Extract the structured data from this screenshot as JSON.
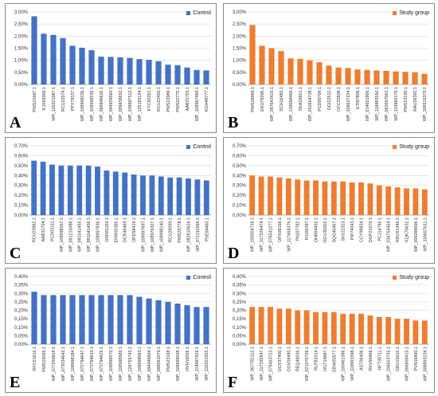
{
  "colors": {
    "control": "#4472C4",
    "study": "#ED7D31"
  },
  "chart_data": [
    {
      "panel": "A",
      "type": "bar",
      "legend": "Control",
      "legend_position": "top-right",
      "color": "#4472C4",
      "ylim": [
        0,
        3.0
      ],
      "yticks": [
        0,
        0.5,
        1.0,
        1.5,
        2.0,
        2.5,
        3.0
      ],
      "ytick_labels": [
        "0,00%",
        "0,50%",
        "1,00%",
        "1,50%",
        "2,00%",
        "2,50%",
        "3,00%"
      ],
      "grid": true,
      "categories": [
        "PWS22997.1",
        "KJX92006.1",
        "WP_110201987.1",
        "RCU22074.1",
        "PPY78337.1",
        "WP_108998236.1",
        "WP_108998235.1",
        "WP_068846626.1",
        "WP_094934560.1",
        "WP_089438650.1",
        "WP_108997512.1",
        "WP_125183134.1",
        "KTC95351.1",
        "RCU22456.1",
        "PWS22986.1",
        "PWS22770.1",
        "AAB31703.1",
        "WP_108997468.1",
        "KGH48777.1"
      ],
      "values": [
        2.82,
        2.1,
        2.05,
        1.92,
        1.6,
        1.52,
        1.42,
        1.15,
        1.14,
        1.12,
        1.1,
        1.05,
        1.02,
        0.96,
        0.82,
        0.8,
        0.7,
        0.6,
        0.58
      ]
    },
    {
      "panel": "B",
      "type": "bar",
      "legend": "Study group",
      "legend_position": "top-right",
      "color": "#ED7D31",
      "ylim": [
        0,
        3.0
      ],
      "yticks": [
        0,
        0.5,
        1.0,
        1.5,
        2.0,
        2.5,
        3.0
      ],
      "ytick_labels": [
        "0,00%",
        "0,50%",
        "1,00%",
        "1,50%",
        "2,00%",
        "2,50%",
        "3,00%"
      ],
      "grid": true,
      "categories": [
        "PWS28988.1",
        "EKO79396.1",
        "WP_087643415.1",
        "SCH16485.1",
        "WP_139098468.1",
        "SKA29921.1",
        "WP_052664738.1",
        "PCD00708.1",
        "OGI22512.1",
        "OFC32608.1",
        "WP_106627234.1",
        "ETI87806.1",
        "WP_014651806.1",
        "WP_118883550.1",
        "WP_062697062.1",
        "WP_114960176.1",
        "PWS23230.1",
        "RAU26392.1",
        "WP_106515370.1"
      ],
      "values": [
        2.46,
        1.6,
        1.5,
        1.38,
        1.08,
        1.06,
        1.0,
        0.92,
        0.78,
        0.7,
        0.68,
        0.62,
        0.6,
        0.58,
        0.56,
        0.54,
        0.52,
        0.5,
        0.44
      ]
    },
    {
      "panel": "C",
      "type": "bar",
      "legend": "Control",
      "legend_position": "top-right",
      "color": "#4472C4",
      "ylim": [
        0,
        0.7
      ],
      "yticks": [
        0,
        0.1,
        0.2,
        0.3,
        0.4,
        0.5,
        0.6,
        0.7
      ],
      "ytick_labels": [
        "0,00%",
        "0,10%",
        "0,20%",
        "0,30%",
        "0,40%",
        "0,50%",
        "0,60%",
        "0,70%"
      ],
      "grid": true,
      "categories": [
        "RCU23962.1",
        "AAB31704.1",
        "PCD03111.1",
        "WP_108998557.1",
        "WP_081215088.1",
        "WP_081041455.1",
        "WP_081041456.1",
        "WP_108997836.1",
        "OSR81169.1",
        "ERM00395.1",
        "OCR48469.1",
        "OFD58419.1",
        "WP_108997697.1",
        "WP_108976327.1",
        "WP_108998140.1",
        "RCU28299.1",
        "PWS25778.1",
        "WP_082810626.1",
        "WP_071211566.1",
        "PSE04460.1"
      ],
      "values": [
        0.55,
        0.54,
        0.51,
        0.5,
        0.5,
        0.5,
        0.5,
        0.49,
        0.45,
        0.44,
        0.43,
        0.41,
        0.4,
        0.4,
        0.39,
        0.38,
        0.38,
        0.37,
        0.36,
        0.35
      ]
    },
    {
      "panel": "D",
      "type": "bar",
      "legend": "Study group",
      "legend_position": "top-right",
      "color": "#ED7D31",
      "ylim": [
        0,
        0.7
      ],
      "yticks": [
        0,
        0.1,
        0.2,
        0.3,
        0.4,
        0.5,
        0.6,
        0.7
      ],
      "ytick_labels": [
        "0,00%",
        "0,10%",
        "0,20%",
        "0,30%",
        "0,40%",
        "0,50%",
        "0,60%",
        "0,70%"
      ],
      "grid": true,
      "categories": [
        "WP_100004728.1",
        "WP_117326474.1",
        "WP_076541277.1",
        "OPX06156.1",
        "WP_117458376.1",
        "PNJ07782.1",
        "PIU06397.1",
        "OHB84455.1",
        "OGU30202.1",
        "SQG45467.1",
        "SHJ22323.1",
        "PIP74343.1",
        "CCY99834.1",
        "OGP21570.1",
        "PCJ14785.1",
        "WP_034755454.1",
        "RPG61346.1",
        "KQK70632.1",
        "WP_009284696.1",
        "WP_116657611.1"
      ],
      "values": [
        0.4,
        0.39,
        0.39,
        0.38,
        0.37,
        0.36,
        0.35,
        0.35,
        0.34,
        0.34,
        0.34,
        0.33,
        0.33,
        0.32,
        0.3,
        0.29,
        0.28,
        0.27,
        0.27,
        0.26
      ]
    },
    {
      "panel": "E",
      "type": "bar",
      "legend": "Control",
      "legend_position": "top-right",
      "color": "#4472C4",
      "ylim": [
        0,
        0.4
      ],
      "yticks": [
        0,
        0.05,
        0.1,
        0.15,
        0.2,
        0.25,
        0.3,
        0.35,
        0.4
      ],
      "ytick_labels": [
        "0,00%",
        "0,05%",
        "0,10%",
        "0,15%",
        "0,20%",
        "0,25%",
        "0,30%",
        "0,35%",
        "0,40%"
      ],
      "grid": true,
      "categories": [
        "RFC01619.1",
        "PWS25065.1",
        "WP_077250818.1",
        "WP_073034642.1",
        "WP_108998184.1",
        "WP_072794647.1",
        "WP_072794633.1",
        "WP_072794629.1",
        "WP_108998570.1",
        "WP_108998589.1",
        "WP_126755742.1",
        "WP_108998583.1",
        "WP_094948604.1",
        "WP_088081079.1",
        "PWS23168.1",
        "WP_108998538.1",
        "OVH16026.1",
        "WP_114997919.1",
        "WP_110201955.1"
      ],
      "values": [
        0.31,
        0.29,
        0.29,
        0.29,
        0.29,
        0.29,
        0.29,
        0.29,
        0.29,
        0.29,
        0.29,
        0.28,
        0.27,
        0.26,
        0.25,
        0.24,
        0.23,
        0.22,
        0.22
      ]
    },
    {
      "panel": "F",
      "type": "bar",
      "legend": "Study group",
      "legend_position": "top-right",
      "color": "#ED7D31",
      "ylim": [
        0,
        0.4
      ],
      "yticks": [
        0,
        0.05,
        0.1,
        0.15,
        0.2,
        0.25,
        0.3,
        0.35,
        0.4
      ],
      "ytick_labels": [
        "0,00%",
        "0,05%",
        "0,10%",
        "0,15%",
        "0,20%",
        "0,25%",
        "0,30%",
        "0,35%",
        "0,40%"
      ],
      "grid": true,
      "categories": [
        "WP_067782112.1",
        "WP_117330547.1",
        "WP_078453723.1",
        "OGV37400.1",
        "OGV38480.1",
        "REQ46036.1",
        "WP_021076726.1",
        "RLP82014.1",
        "OGT19887.1",
        "SDW00577.1",
        "WP_100461386.1",
        "WP_119991598.1",
        "AST06406.1",
        "RKV99499.1",
        "HFT38711.1",
        "WP_106653735.1",
        "GBU15610.1",
        "WP_066608415.1",
        "PVN16890.1",
        "WP_088893234.1"
      ],
      "values": [
        0.22,
        0.22,
        0.22,
        0.21,
        0.21,
        0.2,
        0.2,
        0.19,
        0.19,
        0.19,
        0.18,
        0.18,
        0.18,
        0.17,
        0.16,
        0.16,
        0.15,
        0.15,
        0.14,
        0.14
      ]
    }
  ]
}
